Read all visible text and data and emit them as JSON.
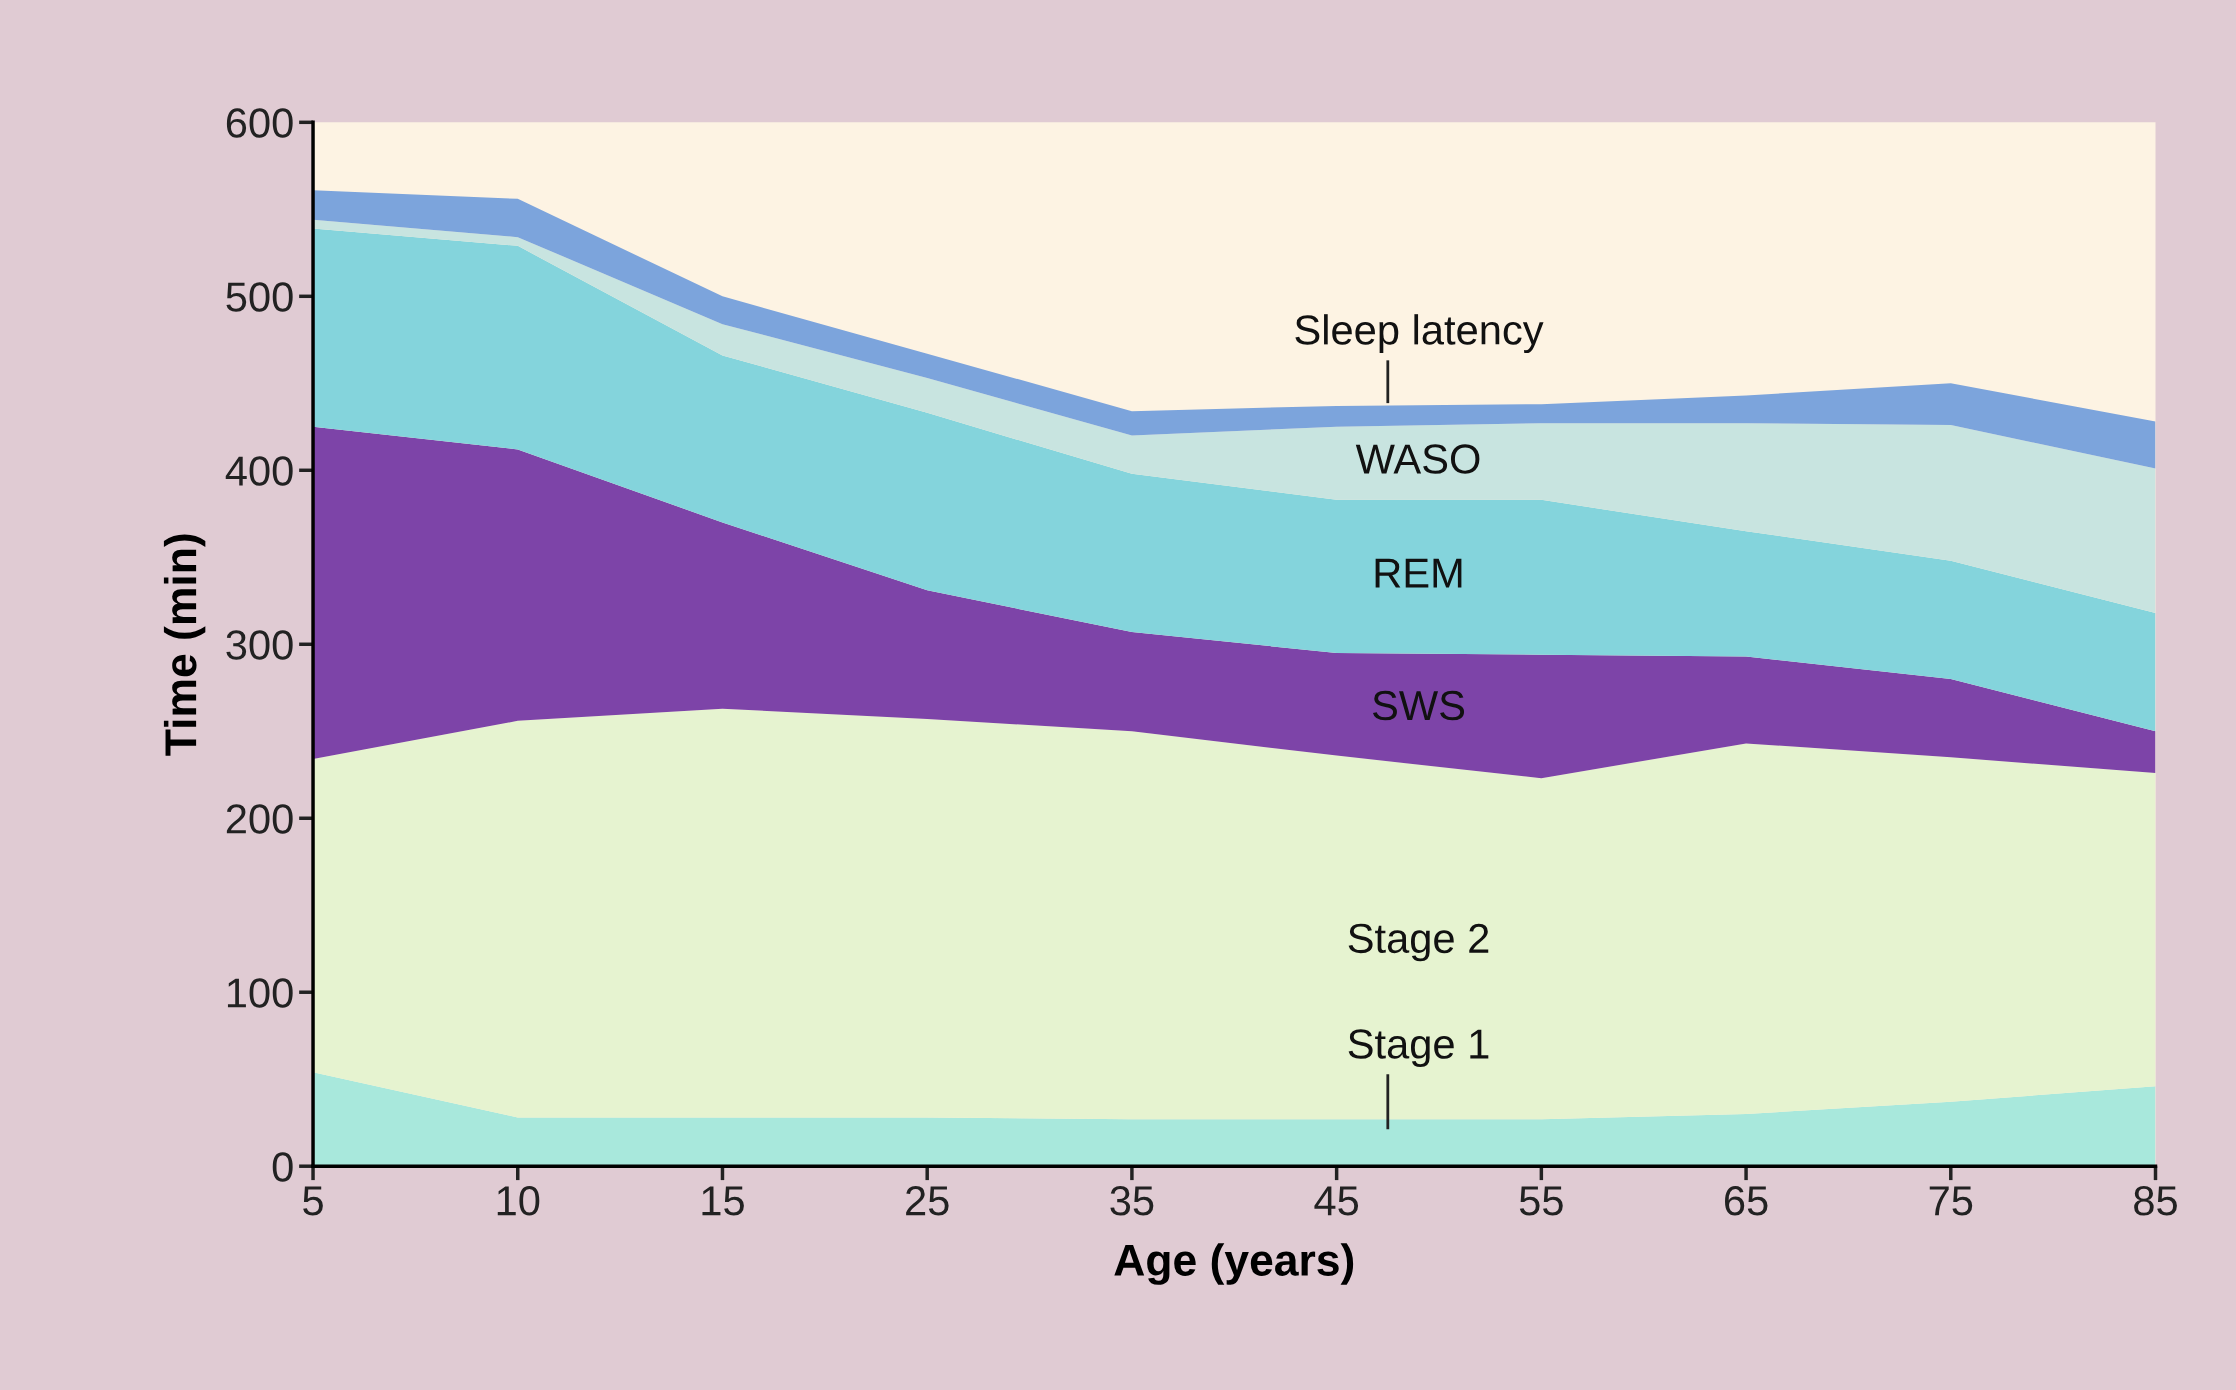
{
  "chart_data": {
    "type": "area",
    "stacked": true,
    "xlabel": "Age (years)",
    "ylabel": "Time (min)",
    "categories": [
      "5",
      "10",
      "15",
      "25",
      "35",
      "45",
      "55",
      "65",
      "75",
      "85"
    ],
    "ylim": [
      0,
      600
    ],
    "yticks": [
      0,
      100,
      200,
      300,
      400,
      500,
      600
    ],
    "grid": false,
    "legend": false,
    "series": [
      {
        "name": "Stage 1",
        "color": "#a8e8dc",
        "values": [
          54,
          28,
          28,
          28,
          27,
          27,
          27,
          30,
          37,
          46
        ]
      },
      {
        "name": "Stage 2",
        "color": "#e6f3d0",
        "values": [
          180,
          228,
          235,
          229,
          223,
          209,
          196,
          213,
          198,
          180
        ]
      },
      {
        "name": "SWS",
        "color": "#7d44a8",
        "values": [
          191,
          156,
          107,
          74,
          57,
          59,
          71,
          50,
          45,
          24
        ]
      },
      {
        "name": "REM",
        "color": "#84d4dc",
        "values": [
          114,
          117,
          96,
          102,
          91,
          88,
          89,
          72,
          68,
          68
        ]
      },
      {
        "name": "WASO",
        "color": "#c8e4e0",
        "values": [
          5,
          5,
          18,
          20,
          22,
          42,
          44,
          62,
          78,
          83
        ]
      },
      {
        "name": "Sleep latency",
        "color": "#7ca4dc",
        "values": [
          17,
          22,
          16,
          14,
          14,
          12,
          11,
          16,
          24,
          27
        ]
      }
    ]
  }
}
